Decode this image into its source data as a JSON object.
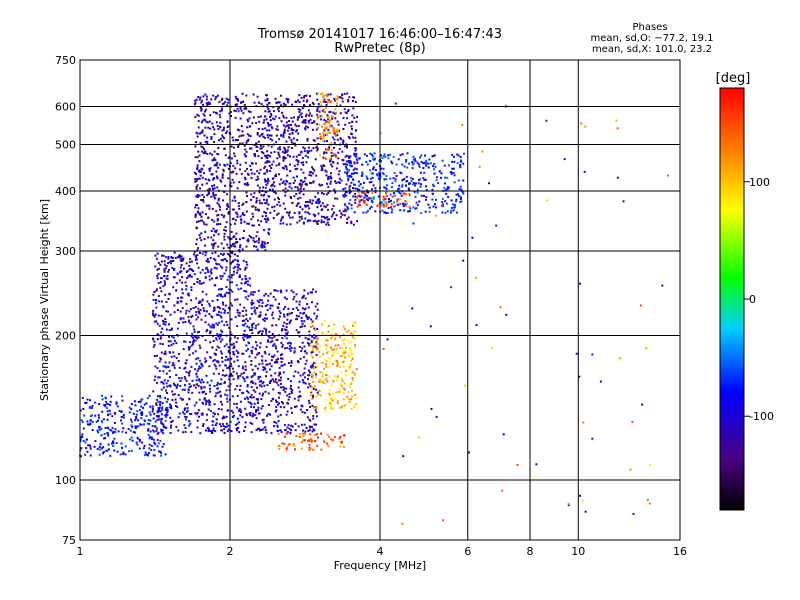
{
  "header": {
    "title": "Tromsø 20141017 16:46:00–16:47:43",
    "subtitle": "RwPretec (8p)"
  },
  "stats": {
    "heading": "Phases",
    "line_o": "mean, sd,O: −77.2, 19.1",
    "line_x": "mean, sd,X: 101.0, 23.2"
  },
  "chart_data": {
    "type": "scatter",
    "title": "Tromsø 20141017 16:46:00–16:47:43",
    "subtitle": "RwPretec (8p)",
    "xlabel": "Frequency [MHz]",
    "ylabel": "Stationary phase Virtual Height [km]",
    "x_scale": "log",
    "y_scale": "log",
    "xlim": [
      1,
      16
    ],
    "ylim": [
      75,
      750
    ],
    "x_ticks": [
      "1",
      "2",
      "4",
      "6",
      "8",
      "10",
      "16"
    ],
    "y_ticks": [
      "75",
      "100",
      "200",
      "300",
      "400",
      "500",
      "600",
      "750"
    ],
    "grid": true,
    "colorbar": {
      "label": "[deg]",
      "ticks": [
        "100",
        "0",
        "-100"
      ],
      "range": [
        -180,
        180
      ],
      "colormap": [
        "#000000",
        "#5a0080",
        "#0000ff",
        "#00d0ff",
        "#00ff00",
        "#ffff00",
        "#ff8000",
        "#ff0000"
      ]
    },
    "series": [
      {
        "name": "mean, sd,O: −77.2, 19.1",
        "description_regions": [
          {
            "freq": [
              1.0,
              1.5
            ],
            "height": [
              112,
              150
            ],
            "phase": -95
          },
          {
            "freq": [
              1.4,
              2.2
            ],
            "height": [
              125,
              300
            ],
            "phase": -115
          },
          {
            "freq": [
              1.7,
              2.4
            ],
            "height": [
              300,
              640
            ],
            "phase": -125
          },
          {
            "freq": [
              2.35,
              3.6
            ],
            "height": [
              340,
              640
            ],
            "phase": -125
          },
          {
            "freq": [
              2.2,
              3.0
            ],
            "height": [
              125,
              250
            ],
            "phase": -120
          },
          {
            "freq": [
              3.4,
              5.9
            ],
            "height": [
              360,
              480
            ],
            "phase": -90
          }
        ]
      },
      {
        "name": "mean, sd,X: 101.0, 23.2",
        "description_regions": [
          {
            "freq": [
              2.9,
              3.6
            ],
            "height": [
              140,
              215
            ],
            "phase": 110
          },
          {
            "freq": [
              3.0,
              3.3
            ],
            "height": [
              460,
              640
            ],
            "phase": 130
          },
          {
            "freq": [
              3.6,
              4.6
            ],
            "height": [
              370,
              400
            ],
            "phase": 150
          },
          {
            "freq": [
              2.5,
              3.4
            ],
            "height": [
              115,
              125
            ],
            "phase": 145
          }
        ]
      }
    ]
  }
}
